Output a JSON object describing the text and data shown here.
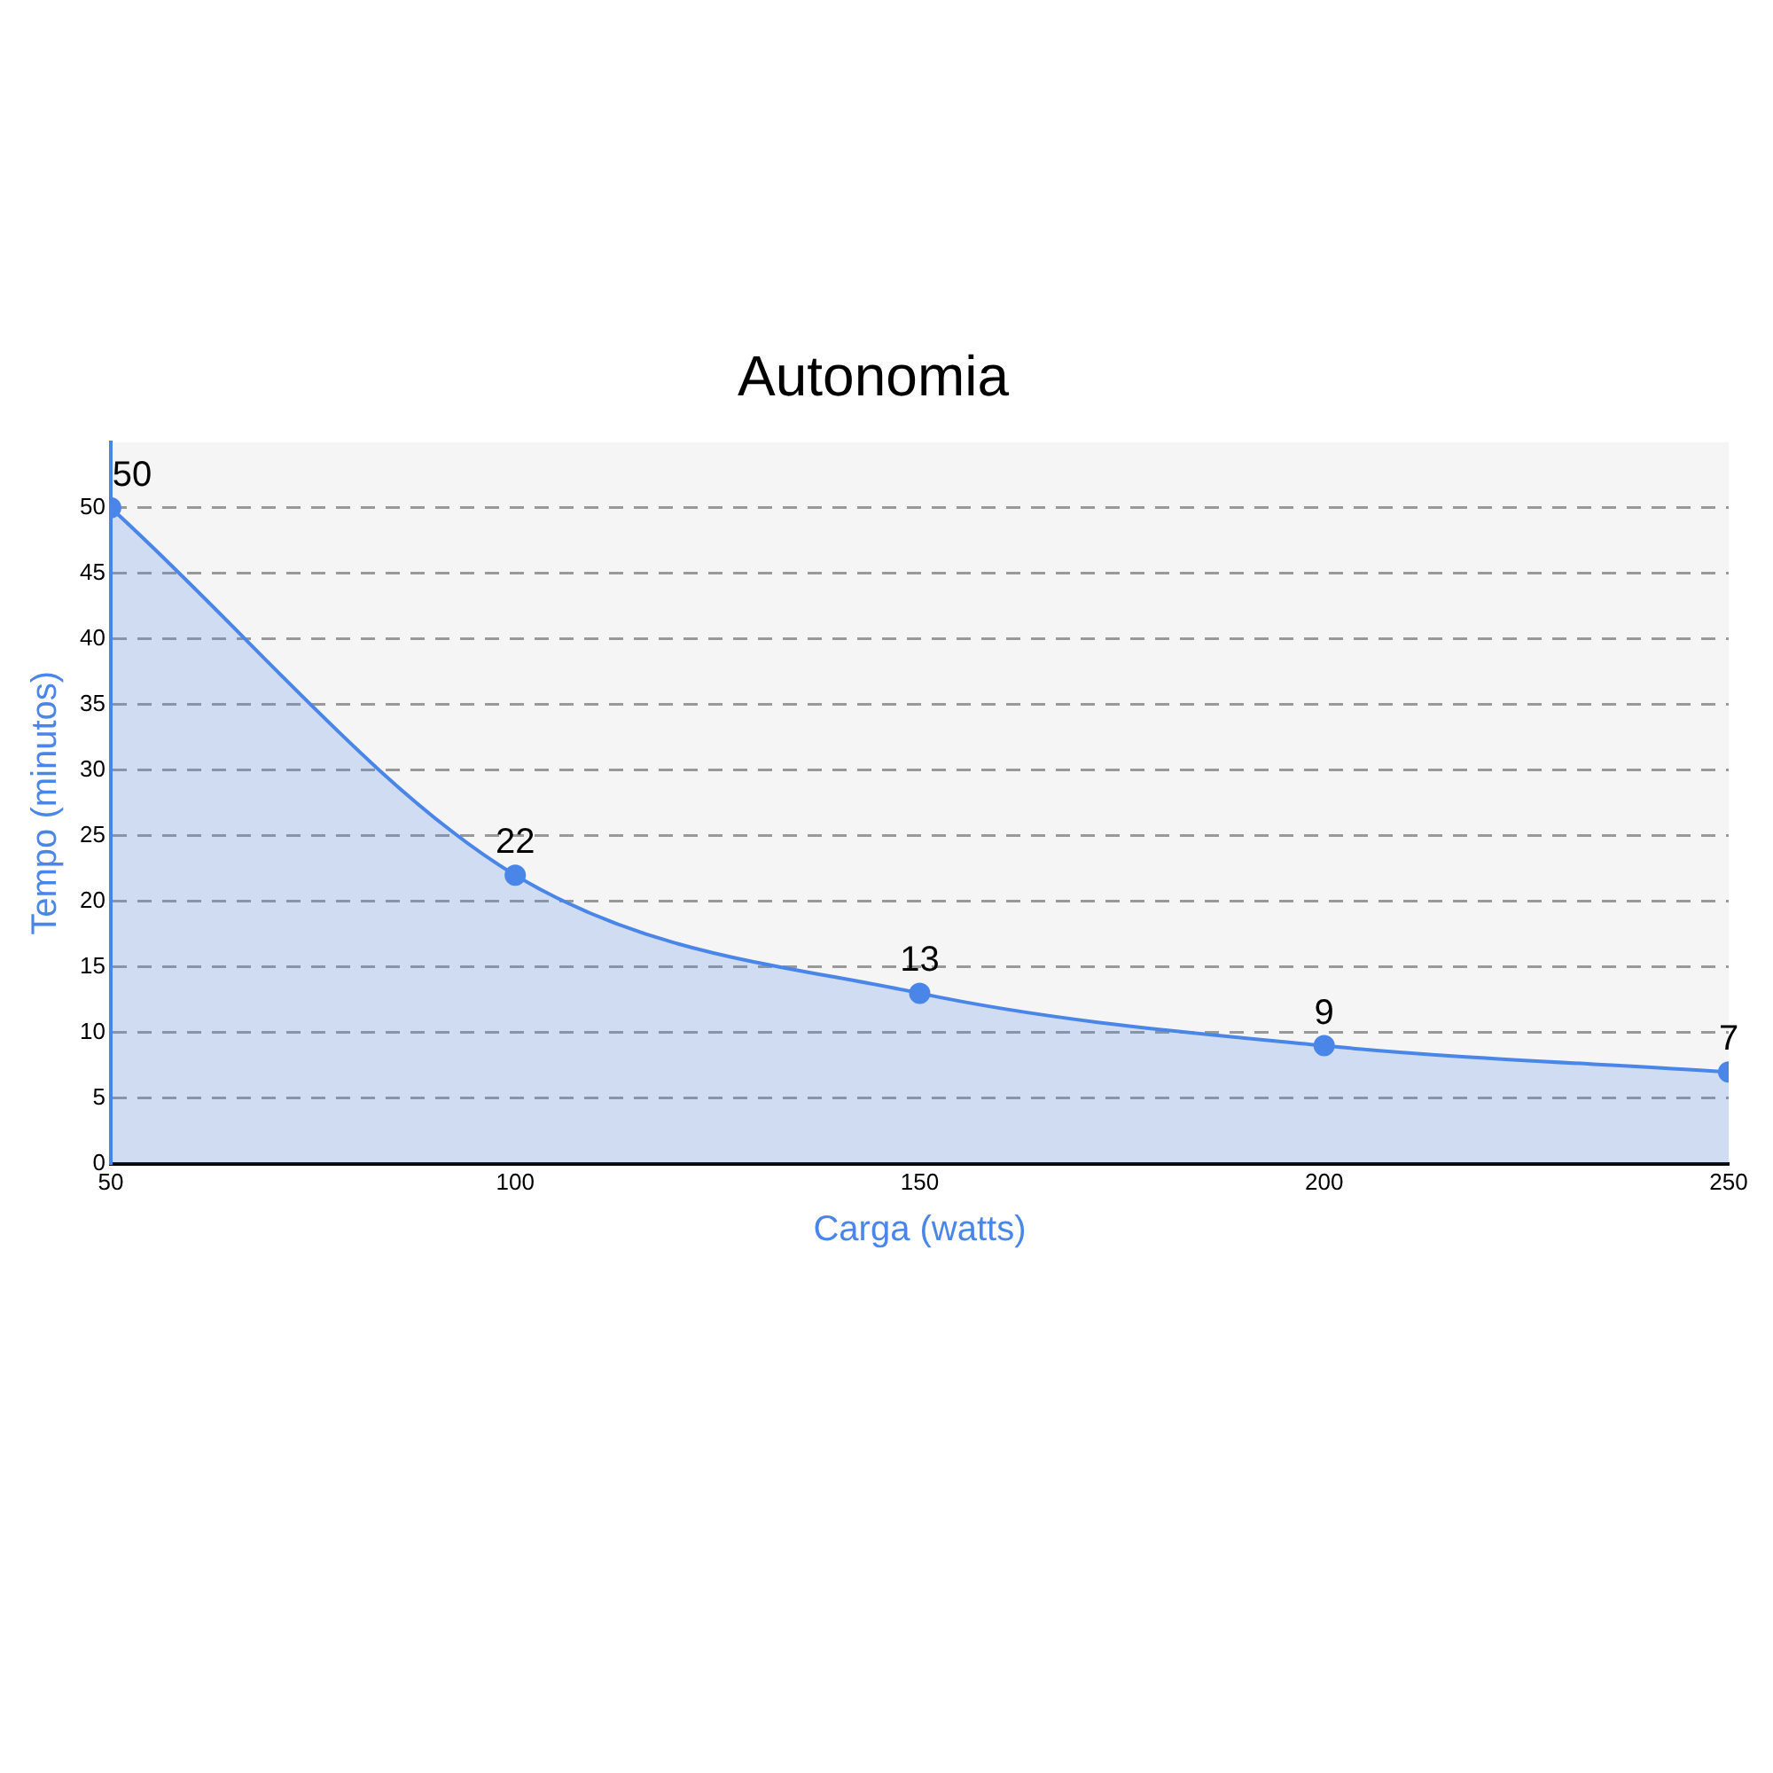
{
  "chart_data": {
    "type": "area",
    "title": "Autonomia",
    "xlabel": "Carga (watts)",
    "ylabel": "Tempo (minutos)",
    "x": [
      50,
      100,
      150,
      200,
      250
    ],
    "series": [
      {
        "color": "#4a86e8",
        "values": [
          50,
          22,
          13,
          9,
          7
        ]
      }
    ],
    "xlim": [
      50,
      250
    ],
    "xticks": [
      50,
      100,
      150,
      200,
      250
    ],
    "ylim": [
      0,
      55
    ],
    "yticks": [
      0,
      5,
      10,
      15,
      20,
      25,
      30,
      35,
      40,
      45,
      50
    ],
    "grid": "y",
    "marker": "circle",
    "data_labels": true,
    "legend": false
  }
}
